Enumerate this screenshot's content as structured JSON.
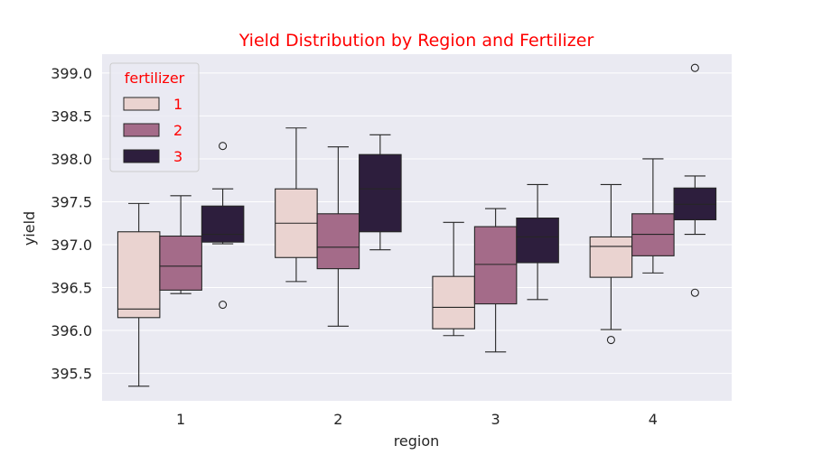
{
  "chart_data": {
    "type": "boxplot",
    "title": "Yield Distribution by Region and Fertilizer",
    "xlabel": "region",
    "ylabel": "yield",
    "categories": [
      "1",
      "2",
      "3",
      "4"
    ],
    "ylim": [
      395.18,
      399.22
    ],
    "yticks": [
      "395.5",
      "396.0",
      "396.5",
      "397.0",
      "397.5",
      "398.0",
      "398.5",
      "399.0"
    ],
    "grid": true,
    "legend": {
      "title": "fertilizer",
      "position": "top-left"
    },
    "series": [
      {
        "name": "1",
        "color": "#ead3d0",
        "boxes": [
          {
            "whislo": 395.35,
            "q1": 396.15,
            "med": 396.25,
            "q3": 397.15,
            "whishi": 397.48,
            "fliers": []
          },
          {
            "whislo": 396.57,
            "q1": 396.85,
            "med": 397.25,
            "q3": 397.65,
            "whishi": 398.36,
            "fliers": []
          },
          {
            "whislo": 395.94,
            "q1": 396.02,
            "med": 396.27,
            "q3": 396.63,
            "whishi": 397.26,
            "fliers": []
          },
          {
            "whislo": 396.01,
            "q1": 396.62,
            "med": 396.98,
            "q3": 397.09,
            "whishi": 397.7,
            "fliers": [
              395.89
            ]
          }
        ]
      },
      {
        "name": "2",
        "color": "#a46b89",
        "boxes": [
          {
            "whislo": 396.43,
            "q1": 396.47,
            "med": 396.75,
            "q3": 397.1,
            "whishi": 397.57,
            "fliers": []
          },
          {
            "whislo": 396.05,
            "q1": 396.72,
            "med": 396.97,
            "q3": 397.36,
            "whishi": 398.14,
            "fliers": []
          },
          {
            "whislo": 395.75,
            "q1": 396.31,
            "med": 396.77,
            "q3": 397.21,
            "whishi": 397.42,
            "fliers": []
          },
          {
            "whislo": 396.67,
            "q1": 396.87,
            "med": 397.12,
            "q3": 397.36,
            "whishi": 398.0,
            "fliers": []
          }
        ]
      },
      {
        "name": "3",
        "color": "#2d1e3d",
        "boxes": [
          {
            "whislo": 397.01,
            "q1": 397.03,
            "med": 397.12,
            "q3": 397.45,
            "whishi": 397.65,
            "fliers": [
              398.15,
              396.3
            ]
          },
          {
            "whislo": 396.94,
            "q1": 397.15,
            "med": 397.65,
            "q3": 398.05,
            "whishi": 398.28,
            "fliers": []
          },
          {
            "whislo": 396.36,
            "q1": 396.79,
            "med": 397.09,
            "q3": 397.31,
            "whishi": 397.7,
            "fliers": []
          },
          {
            "whislo": 397.12,
            "q1": 397.29,
            "med": 397.47,
            "q3": 397.66,
            "whishi": 397.8,
            "fliers": [
              399.06,
              396.44
            ]
          }
        ]
      }
    ],
    "colors": {
      "background": "#eaeaf2",
      "grid": "#ffffff",
      "edge": "#262626",
      "title": "#ff0000"
    }
  }
}
